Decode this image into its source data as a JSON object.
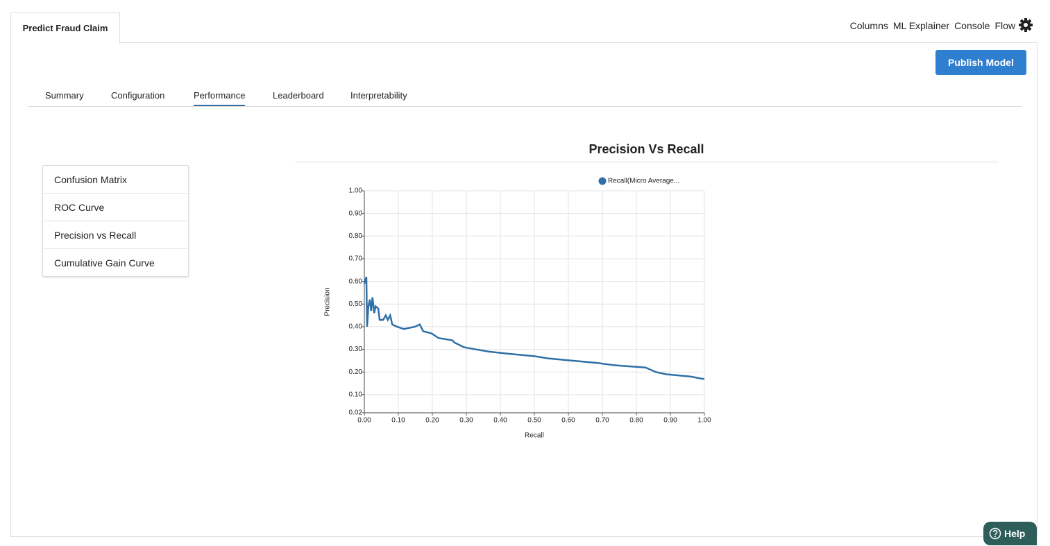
{
  "app_tab": "Predict Fraud Claim",
  "top_nav": [
    "Columns",
    "ML Explainer",
    "Console",
    "Flow"
  ],
  "publish_button": "Publish Model",
  "tabs": [
    "Summary",
    "Configuration",
    "Performance",
    "Leaderboard",
    "Interpretability"
  ],
  "side_menu": [
    "Confusion Matrix",
    "ROC Curve",
    "Precision vs Recall",
    "Cumulative Gain Curve"
  ],
  "help": "Help",
  "chart_data": {
    "type": "line",
    "title": "Precision Vs Recall",
    "x_label": "Recall",
    "y_label": "Precision",
    "x": [
      0.0,
      0.006,
      0.008,
      0.012,
      0.016,
      0.02,
      0.024,
      0.029,
      0.033,
      0.041,
      0.045,
      0.055,
      0.063,
      0.069,
      0.076,
      0.082,
      0.096,
      0.116,
      0.149,
      0.163,
      0.173,
      0.198,
      0.218,
      0.259,
      0.265,
      0.292,
      0.327,
      0.367,
      0.429,
      0.5,
      0.541,
      0.612,
      0.684,
      0.735,
      0.827,
      0.857,
      0.888,
      0.959,
      0.994,
      1.0
    ],
    "series": [
      {
        "name": "Recall(Micro Average...",
        "color": "#2f6fa7",
        "values": [
          0.59,
          0.62,
          0.4,
          0.49,
          0.52,
          0.47,
          0.53,
          0.46,
          0.49,
          0.48,
          0.43,
          0.43,
          0.45,
          0.43,
          0.45,
          0.41,
          0.4,
          0.39,
          0.4,
          0.41,
          0.38,
          0.37,
          0.35,
          0.34,
          0.33,
          0.31,
          0.3,
          0.29,
          0.28,
          0.27,
          0.26,
          0.25,
          0.24,
          0.23,
          0.22,
          0.2,
          0.19,
          0.18,
          0.17,
          0.17
        ]
      }
    ],
    "xlim": [
      0,
      1
    ],
    "ylim": [
      0.02,
      1
    ],
    "xticks": [
      {
        "value": 0,
        "label": "0.00"
      },
      {
        "value": 0.1,
        "label": "0.10"
      },
      {
        "value": 0.2,
        "label": "0.20"
      },
      {
        "value": 0.3,
        "label": "0.30"
      },
      {
        "value": 0.4,
        "label": "0.40"
      },
      {
        "value": 0.5,
        "label": "0.50"
      },
      {
        "value": 0.6,
        "label": "0.60"
      },
      {
        "value": 0.7,
        "label": "0.70"
      },
      {
        "value": 0.8,
        "label": "0.80"
      },
      {
        "value": 0.9,
        "label": "0.90"
      },
      {
        "value": 1,
        "label": "1.00"
      }
    ],
    "yticks": [
      {
        "value": 0.02,
        "label": "0.02"
      },
      {
        "value": 0.1,
        "label": "0.10"
      },
      {
        "value": 0.2,
        "label": "0.20"
      },
      {
        "value": 0.3,
        "label": "0.30"
      },
      {
        "value": 0.4,
        "label": "0.40"
      },
      {
        "value": 0.5,
        "label": "0.50"
      },
      {
        "value": 0.6,
        "label": "0.60"
      },
      {
        "value": 0.7,
        "label": "0.70"
      },
      {
        "value": 0.8,
        "label": "0.80"
      },
      {
        "value": 0.9,
        "label": "0.90"
      },
      {
        "value": 1,
        "label": "1.00"
      }
    ],
    "grid": true,
    "legend": "top-right"
  }
}
